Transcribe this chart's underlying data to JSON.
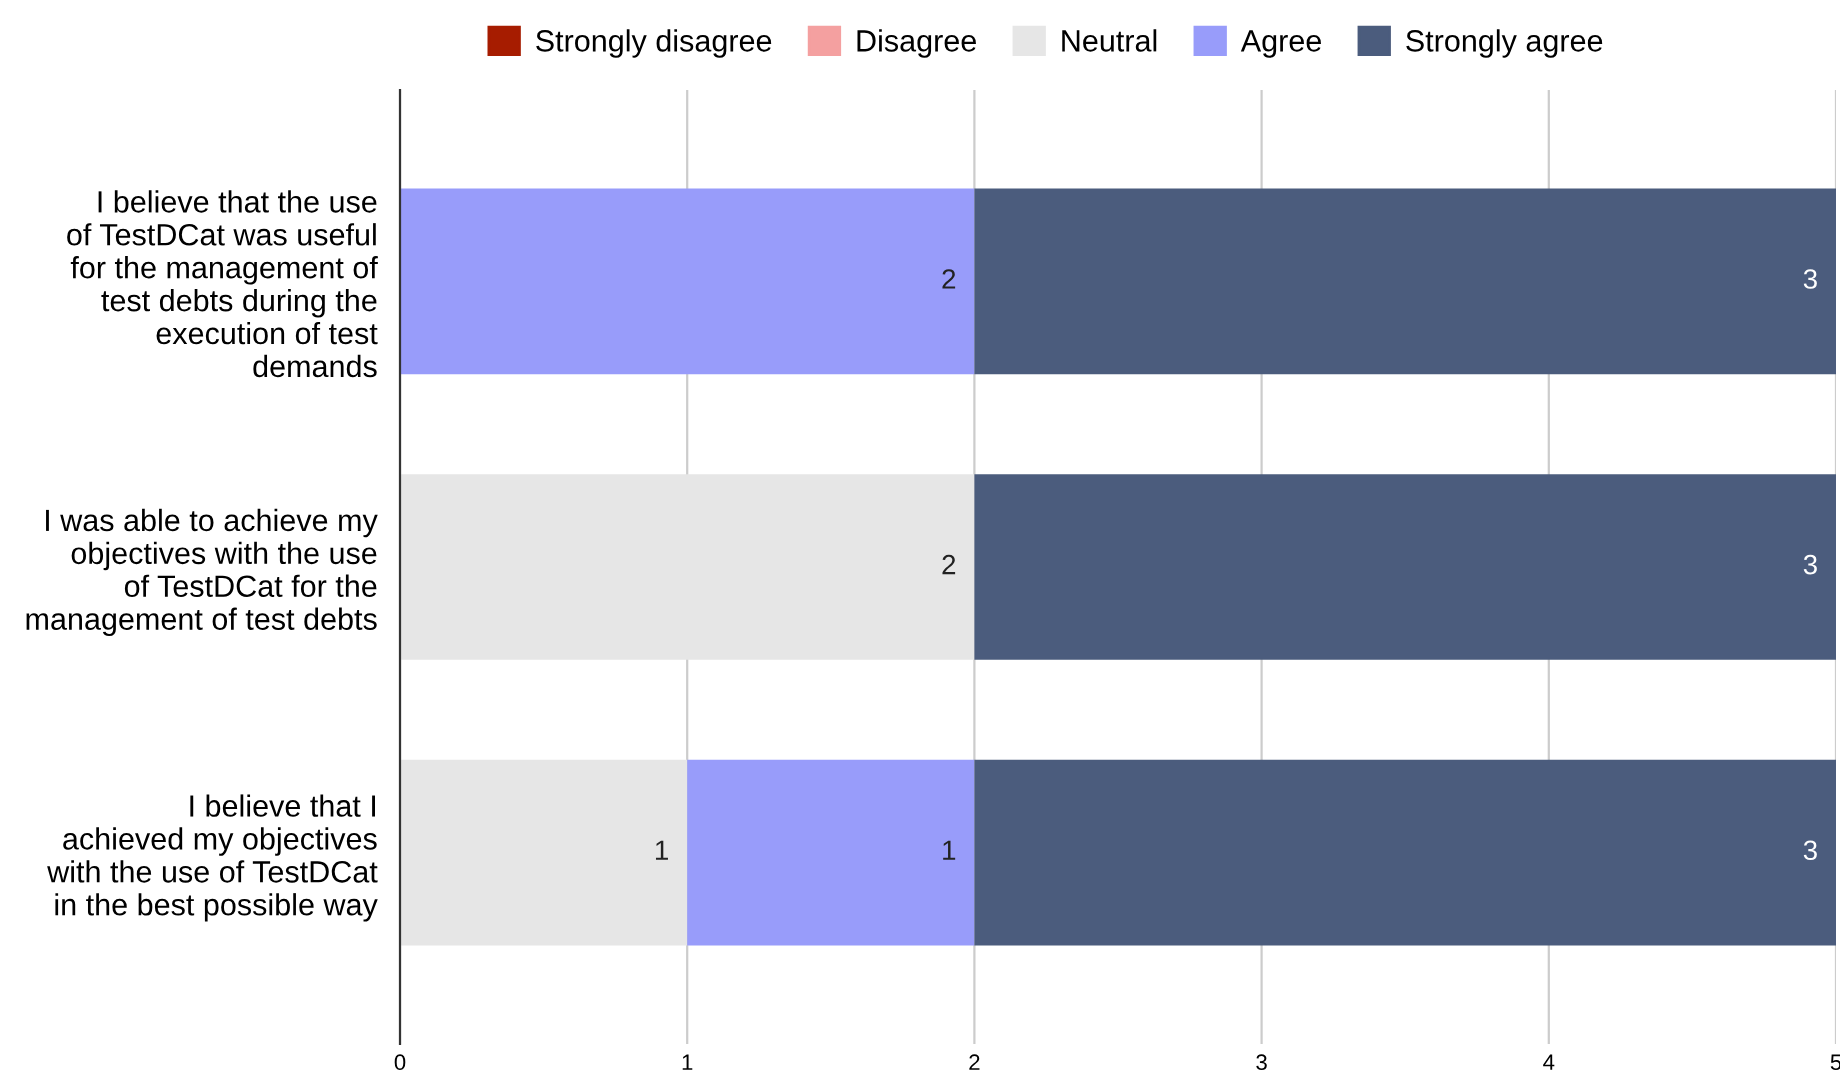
{
  "chart_data": {
    "type": "bar",
    "orientation": "horizontal",
    "stacked": true,
    "categories": [
      "I believe that the use of TestDCat was useful for the management of test debts during the execution of test demands",
      "I was able to achieve my objectives with the use of TestDCat for the management of test debts",
      "I believe that I achieved my objectives with the use of TestDCat in the best possible way"
    ],
    "series": [
      {
        "name": "Strongly disagree",
        "color": "#a61c00",
        "values": [
          null,
          null,
          null
        ]
      },
      {
        "name": "Disagree",
        "color": "#f4a0a0",
        "values": [
          null,
          null,
          null
        ]
      },
      {
        "name": "Neutral",
        "color": "#e6e6e6",
        "values": [
          null,
          2,
          1
        ]
      },
      {
        "name": "Agree",
        "color": "#989cfa",
        "values": [
          2,
          null,
          1
        ]
      },
      {
        "name": "Strongly agree",
        "color": "#4b5c7d",
        "values": [
          3,
          3,
          3
        ]
      }
    ],
    "xlim": [
      0,
      5
    ],
    "xticks": [
      0,
      1,
      2,
      3,
      4,
      5
    ],
    "grid": "x",
    "legend": "top",
    "data_labels": true
  }
}
